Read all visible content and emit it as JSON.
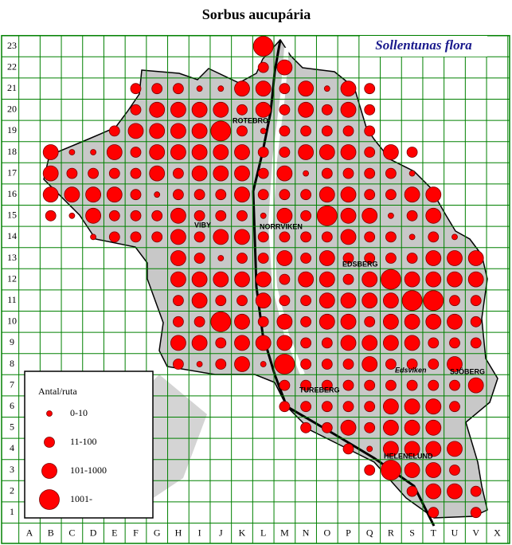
{
  "title": "Sorbus aucupária",
  "subtitle": "Sollentunas flora",
  "columns": [
    "A",
    "B",
    "C",
    "D",
    "E",
    "F",
    "G",
    "H",
    "I",
    "J",
    "K",
    "L",
    "M",
    "N",
    "O",
    "P",
    "Q",
    "R",
    "S",
    "T",
    "U",
    "V",
    "X"
  ],
  "rows": [
    23,
    22,
    21,
    20,
    19,
    18,
    17,
    16,
    15,
    14,
    13,
    12,
    11,
    10,
    9,
    8,
    7,
    6,
    5,
    4,
    3,
    2,
    1
  ],
  "legend": {
    "title": "Antal/ruta",
    "entries": [
      "0-10",
      "11-100",
      "101-1000",
      "1001-"
    ]
  },
  "places": [
    "ROTEBRO",
    "VIBY",
    "NORRVIKEN",
    "EDSBERG",
    "TUREBERG",
    "Edsviken",
    "SJÖBERG",
    "HELENELUND"
  ],
  "grid": [
    [
      null,
      null,
      null,
      null,
      null,
      null,
      null,
      null,
      null,
      null,
      null,
      3,
      null,
      null,
      null,
      null,
      null,
      null,
      null,
      null,
      null,
      null,
      null
    ],
    [
      null,
      null,
      null,
      null,
      null,
      null,
      null,
      null,
      null,
      null,
      null,
      1,
      2,
      null,
      null,
      null,
      null,
      null,
      null,
      null,
      null,
      null,
      null
    ],
    [
      null,
      null,
      null,
      null,
      null,
      1,
      1,
      1,
      0,
      0,
      2,
      2,
      1,
      2,
      0,
      2,
      1,
      null,
      null,
      null,
      null,
      null,
      null
    ],
    [
      null,
      null,
      null,
      null,
      null,
      1,
      2,
      2,
      2,
      2,
      1,
      2,
      1,
      2,
      1,
      2,
      1,
      null,
      null,
      null,
      null,
      null,
      null
    ],
    [
      null,
      null,
      null,
      null,
      1,
      2,
      2,
      2,
      2,
      3,
      1,
      0,
      1,
      1,
      1,
      1,
      1,
      null,
      null,
      null,
      null,
      null,
      null
    ],
    [
      null,
      2,
      0,
      0,
      2,
      1,
      2,
      2,
      2,
      2,
      2,
      1,
      1,
      2,
      2,
      2,
      1,
      2,
      1,
      null,
      null,
      null,
      null
    ],
    [
      null,
      2,
      1,
      1,
      1,
      1,
      2,
      1,
      2,
      2,
      2,
      1,
      2,
      0,
      1,
      1,
      1,
      1,
      0,
      null,
      null,
      null,
      null
    ],
    [
      null,
      2,
      2,
      2,
      2,
      1,
      0,
      1,
      1,
      1,
      2,
      1,
      1,
      1,
      2,
      2,
      1,
      1,
      2,
      2,
      null,
      null,
      null
    ],
    [
      null,
      1,
      0,
      2,
      1,
      1,
      1,
      2,
      1,
      1,
      1,
      0,
      2,
      1,
      3,
      2,
      2,
      0,
      1,
      2,
      null,
      null,
      null
    ],
    [
      null,
      null,
      null,
      0,
      1,
      1,
      1,
      2,
      1,
      2,
      2,
      1,
      1,
      1,
      1,
      2,
      1,
      1,
      0,
      1,
      0,
      null,
      null
    ],
    [
      null,
      null,
      null,
      null,
      null,
      null,
      null,
      2,
      1,
      0,
      1,
      1,
      2,
      1,
      2,
      1,
      1,
      1,
      1,
      2,
      2,
      2,
      null
    ],
    [
      null,
      null,
      null,
      null,
      null,
      null,
      null,
      2,
      2,
      2,
      2,
      2,
      1,
      2,
      2,
      1,
      2,
      3,
      2,
      2,
      2,
      2,
      null
    ],
    [
      null,
      null,
      null,
      null,
      null,
      null,
      null,
      1,
      2,
      1,
      1,
      2,
      1,
      1,
      2,
      2,
      2,
      2,
      3,
      3,
      1,
      1,
      null
    ],
    [
      null,
      null,
      null,
      null,
      null,
      null,
      null,
      1,
      1,
      3,
      2,
      1,
      2,
      1,
      2,
      2,
      1,
      2,
      2,
      2,
      2,
      1,
      null
    ],
    [
      null,
      null,
      null,
      null,
      null,
      null,
      null,
      2,
      2,
      1,
      2,
      2,
      2,
      1,
      1,
      2,
      2,
      2,
      2,
      1,
      1,
      1,
      null
    ],
    [
      null,
      null,
      null,
      null,
      null,
      null,
      null,
      1,
      0,
      1,
      2,
      0,
      3,
      1,
      1,
      1,
      2,
      1,
      1,
      1,
      2,
      null,
      null
    ],
    [
      null,
      null,
      null,
      null,
      null,
      null,
      null,
      null,
      null,
      null,
      null,
      null,
      1,
      1,
      1,
      1,
      1,
      1,
      1,
      1,
      1,
      2,
      null
    ],
    [
      null,
      null,
      null,
      null,
      null,
      null,
      null,
      null,
      null,
      null,
      null,
      null,
      1,
      1,
      1,
      1,
      1,
      2,
      2,
      2,
      1,
      null,
      null
    ],
    [
      null,
      null,
      null,
      null,
      null,
      null,
      null,
      null,
      null,
      null,
      null,
      null,
      null,
      1,
      1,
      2,
      1,
      2,
      2,
      2,
      null,
      null,
      null
    ],
    [
      null,
      null,
      null,
      null,
      null,
      null,
      null,
      null,
      null,
      null,
      null,
      null,
      null,
      null,
      null,
      1,
      0,
      2,
      2,
      2,
      2,
      null,
      null
    ],
    [
      null,
      null,
      null,
      null,
      null,
      null,
      null,
      null,
      null,
      null,
      null,
      null,
      null,
      null,
      null,
      null,
      1,
      3,
      2,
      2,
      1,
      null,
      null
    ],
    [
      null,
      null,
      null,
      null,
      null,
      null,
      null,
      null,
      null,
      null,
      null,
      null,
      null,
      null,
      null,
      null,
      null,
      null,
      1,
      2,
      2,
      1,
      null
    ],
    [
      null,
      null,
      null,
      null,
      null,
      null,
      null,
      null,
      null,
      null,
      null,
      null,
      null,
      null,
      null,
      null,
      null,
      null,
      null,
      1,
      null,
      1,
      null
    ]
  ]
}
